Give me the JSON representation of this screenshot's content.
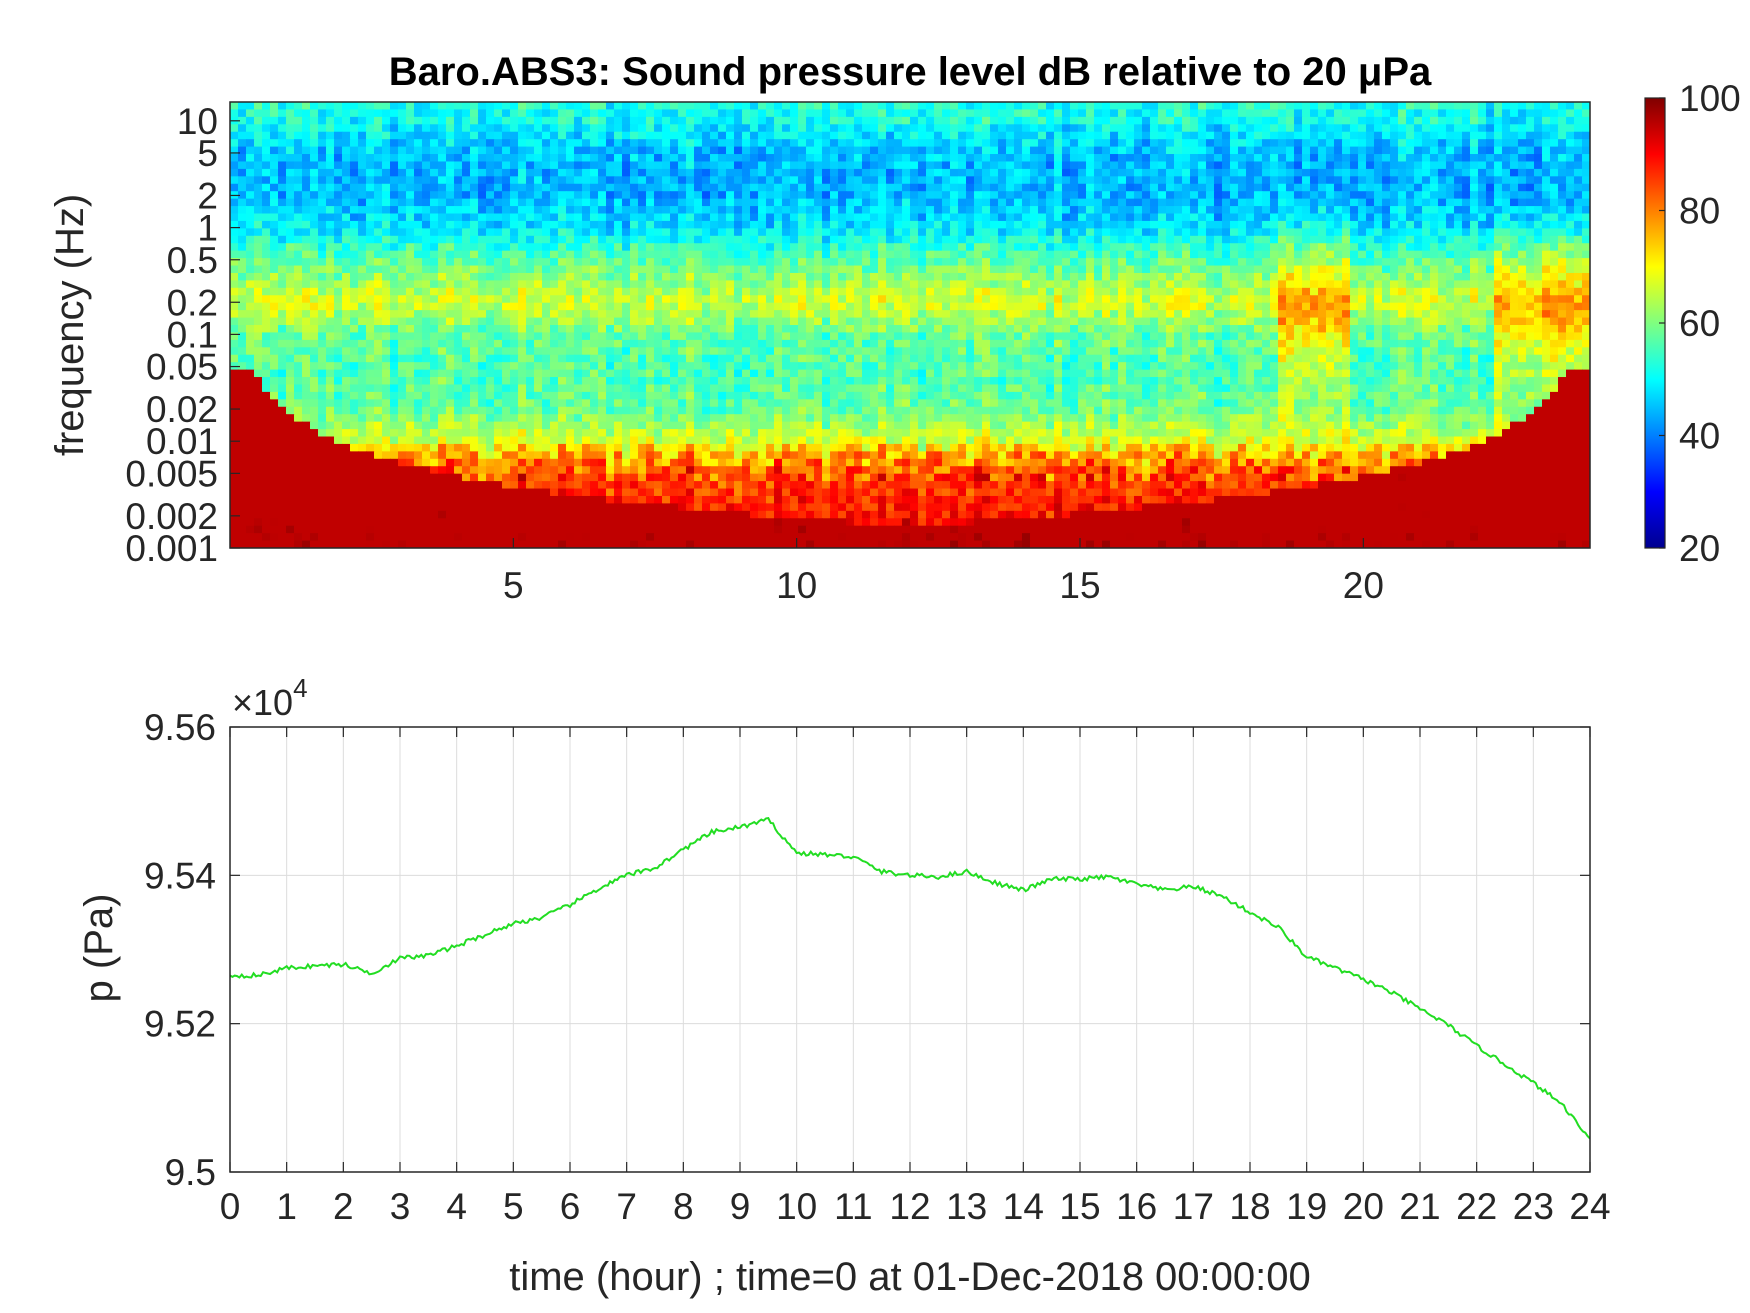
{
  "chart_data": [
    {
      "type": "heatmap",
      "title": "Baro.ABS3: Sound pressure level dB relative to 20 μPa",
      "ylabel": "frequency (Hz)",
      "xlim": [
        0,
        24
      ],
      "ylim": [
        0.001,
        15
      ],
      "yscale": "log",
      "x_ticks": [
        5,
        10,
        15,
        20
      ],
      "y_ticks": [
        10,
        5,
        2,
        1,
        0.5,
        0.2,
        0.1,
        0.05,
        0.02,
        0.01,
        0.005,
        0.002,
        0.001
      ],
      "colorbar": {
        "range": [
          20,
          100
        ],
        "ticks": [
          100,
          80,
          60,
          40,
          20
        ],
        "colormap": "jet"
      },
      "frequency_profile_db": [
        {
          "f": 0.001,
          "db": 92
        },
        {
          "f": 0.002,
          "db": 89
        },
        {
          "f": 0.005,
          "db": 84
        },
        {
          "f": 0.008,
          "db": 75
        },
        {
          "f": 0.01,
          "db": 67
        },
        {
          "f": 0.02,
          "db": 58
        },
        {
          "f": 0.05,
          "db": 56
        },
        {
          "f": 0.1,
          "db": 58
        },
        {
          "f": 0.2,
          "db": 67
        },
        {
          "f": 0.5,
          "db": 57
        },
        {
          "f": 1,
          "db": 48
        },
        {
          "f": 2,
          "db": 44
        },
        {
          "f": 5,
          "db": 45
        },
        {
          "f": 10,
          "db": 51
        },
        {
          "f": 15,
          "db": 52
        }
      ],
      "high_energy_periods_hour": [
        [
          18.5,
          19.8
        ],
        [
          22.3,
          24
        ]
      ],
      "grid": false
    },
    {
      "type": "line",
      "xlabel": "time (hour) ; time=0 at 01-Dec-2018 00:00:00",
      "ylabel": "p (Pa)",
      "xlim": [
        0,
        24
      ],
      "ylim": [
        95000,
        95600
      ],
      "y_exponent_label": "×10",
      "y_exponent_power": "4",
      "x_ticks": [
        0,
        1,
        2,
        3,
        4,
        5,
        6,
        7,
        8,
        9,
        10,
        11,
        12,
        13,
        14,
        15,
        16,
        17,
        18,
        19,
        20,
        21,
        22,
        23,
        24
      ],
      "y_ticks": [
        95000,
        95200,
        95400,
        95600
      ],
      "y_tick_labels": [
        "9.5",
        "9.52",
        "9.54",
        "9.56"
      ],
      "grid": true,
      "series": [
        {
          "color": "#22dd22",
          "x": [
            0,
            0.5,
            1,
            1.5,
            2,
            2.5,
            3,
            3.5,
            4,
            4.5,
            5,
            5.5,
            6,
            6.5,
            7,
            7.5,
            8,
            8.5,
            9,
            9.5,
            10,
            10.5,
            11,
            11.5,
            12,
            12.5,
            13,
            13.5,
            14,
            14.5,
            15,
            15.5,
            16,
            16.5,
            17,
            17.5,
            18,
            18.5,
            19,
            19.5,
            20,
            20.5,
            21,
            21.5,
            22,
            22.5,
            23,
            23.5,
            24
          ],
          "y": [
            95265,
            95265,
            95275,
            95278,
            95280,
            95268,
            95288,
            95292,
            95305,
            95320,
            95335,
            95343,
            95360,
            95382,
            95400,
            95410,
            95435,
            95458,
            95465,
            95475,
            95430,
            95428,
            95425,
            95405,
            95400,
            95398,
            95405,
            95390,
            95380,
            95395,
            95395,
            95398,
            95388,
            95380,
            95385,
            95372,
            95350,
            95330,
            95290,
            95275,
            95260,
            95242,
            95220,
            95198,
            95170,
            95145,
            95120,
            95092,
            95045
          ]
        }
      ]
    }
  ]
}
